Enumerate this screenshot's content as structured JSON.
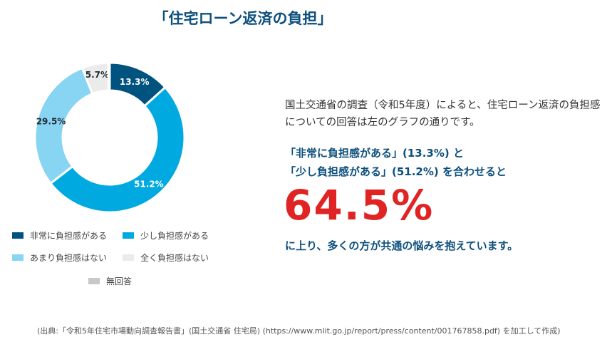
{
  "title": "「住宅ローン返済の負担」",
  "chart_data": {
    "type": "pie",
    "variant": "donut",
    "title": "「住宅ローン返済の負担」",
    "categories": [
      "非常に負担感がある",
      "少し負担感がある",
      "あまり負担感はない",
      "全く負担感はない",
      "無回答"
    ],
    "values": [
      13.3,
      51.2,
      29.5,
      5.7,
      0.3
    ],
    "labels": [
      "13.3%",
      "51.2%",
      "29.5%",
      "5.7%",
      ""
    ],
    "colors": [
      "#00527f",
      "#00a9e0",
      "#88d4f3",
      "#ebebeb",
      "#c8c8c8"
    ],
    "label_colors": [
      "#ffffff",
      "#ffffff",
      "#1f2d33",
      "#1f2d33",
      ""
    ],
    "legend_position": "bottom"
  },
  "text": {
    "intro": "国土交通省の調査（令和5年度）によると、住宅ローン返済の負担感についての回答は左のグラフの通りです。",
    "emphasis_line1": "「非常に負担感がある」(13.3%) と",
    "emphasis_line2": "「少し負担感がある」(51.2%) を合わせると",
    "total": "64.5%",
    "conclusion": "に上り、多くの方が共通の悩みを抱えています。"
  },
  "source": "(出典:「令和5年住宅市場動向調査報告書」(国土交通省 住宅局) (https://www.mlit.go.jp/report/press/content/001767858.pdf) を加工して作成)"
}
